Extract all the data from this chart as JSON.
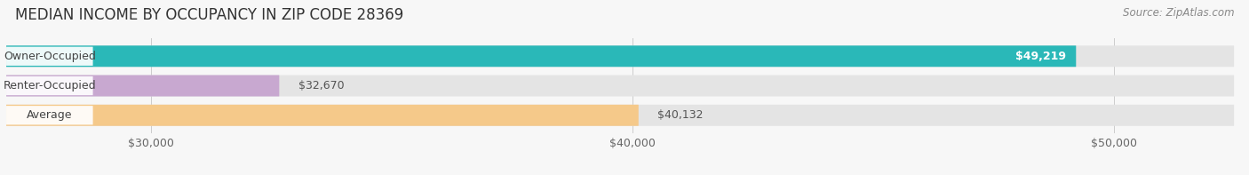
{
  "title": "MEDIAN INCOME BY OCCUPANCY IN ZIP CODE 28369",
  "source": "Source: ZipAtlas.com",
  "categories": [
    "Owner-Occupied",
    "Renter-Occupied",
    "Average"
  ],
  "values": [
    49219,
    32670,
    40132
  ],
  "bar_colors": [
    "#2ab8b8",
    "#c8a8d0",
    "#f5c98a"
  ],
  "value_labels": [
    "$49,219",
    "$32,670",
    "$40,132"
  ],
  "value_inside": [
    true,
    false,
    false
  ],
  "xlim_min": 27000,
  "xlim_max": 52500,
  "data_min": 27000,
  "xticks": [
    30000,
    40000,
    50000
  ],
  "xtick_labels": [
    "$30,000",
    "$40,000",
    "$50,000"
  ],
  "bar_height": 0.72,
  "background_color": "#f7f7f7",
  "bar_bg_color": "#e4e4e4",
  "title_fontsize": 12,
  "source_fontsize": 8.5,
  "label_fontsize": 9,
  "value_fontsize": 9,
  "tick_fontsize": 9
}
